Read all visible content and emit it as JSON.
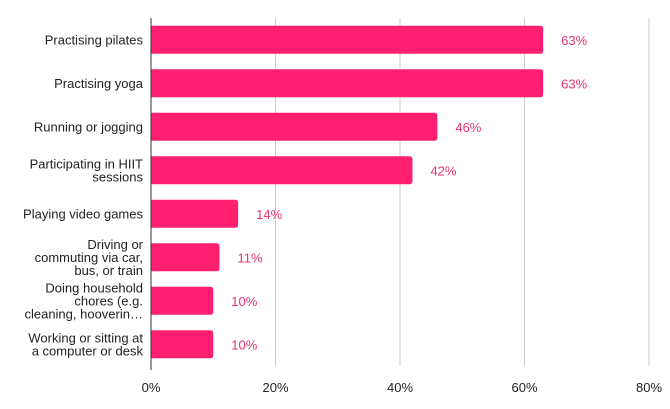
{
  "chart_data": {
    "type": "bar",
    "orientation": "horizontal",
    "categories": [
      [
        "Practising pilates"
      ],
      [
        "Practising yoga"
      ],
      [
        "Running or jogging"
      ],
      [
        "Participating in HIIT",
        "sessions"
      ],
      [
        "Playing video games"
      ],
      [
        "Driving or",
        "commuting via car,",
        "bus, or train"
      ],
      [
        "Doing household",
        "chores (e.g.",
        "cleaning, hooverin…"
      ],
      [
        "Working or sitting at",
        "a computer or desk"
      ]
    ],
    "values": [
      63,
      63,
      46,
      42,
      14,
      11,
      10,
      10
    ],
    "data_labels": [
      "63%",
      "63%",
      "46%",
      "42%",
      "14%",
      "11%",
      "10%",
      "10%"
    ],
    "xlim": [
      0,
      80
    ],
    "x_ticks": [
      0,
      20,
      40,
      60,
      80
    ],
    "x_tick_labels": [
      "0%",
      "20%",
      "40%",
      "60%",
      "80%"
    ],
    "grid": "vertical",
    "legend": "none",
    "bar_color": "#ff1f70",
    "label_color": "#e8336f"
  }
}
